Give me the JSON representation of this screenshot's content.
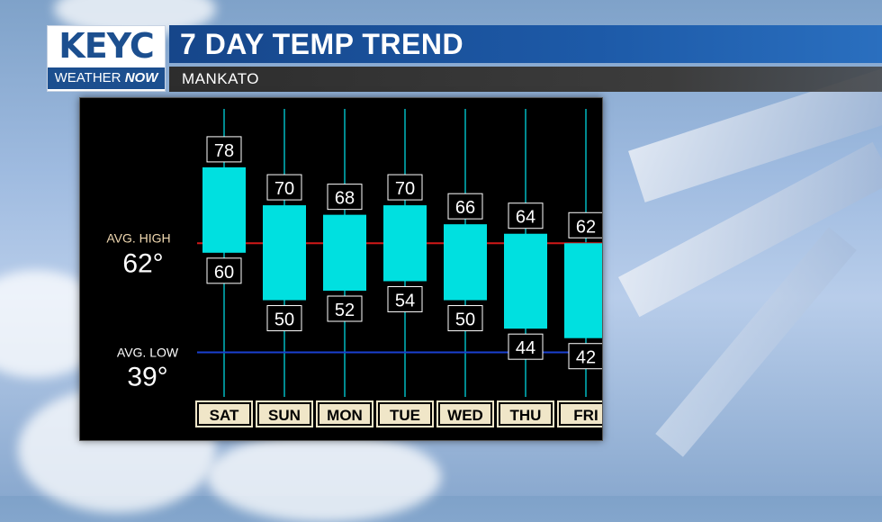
{
  "header": {
    "logo_main": "KEYC",
    "logo_sub_a": "WEATHER",
    "logo_sub_b": "NOW",
    "title": "7 DAY TEMP TREND",
    "location": "MANKATO"
  },
  "colors": {
    "bar": "#00e0e0",
    "avg_high_line": "#d01818",
    "avg_low_line": "#1a3fd0",
    "gridline": "#00b8c0",
    "day_label_bg": "#f0e6c8"
  },
  "chart_data": {
    "type": "bar",
    "title": "7 DAY TEMP TREND",
    "categories": [
      "SAT",
      "SUN",
      "MON",
      "TUE",
      "WED",
      "THU",
      "FRI"
    ],
    "series": [
      {
        "name": "High",
        "values": [
          78,
          70,
          68,
          70,
          66,
          64,
          62
        ]
      },
      {
        "name": "Low",
        "values": [
          60,
          50,
          52,
          54,
          50,
          44,
          42
        ]
      }
    ],
    "avg_high": {
      "label": "AVG. HIGH",
      "value": "62°",
      "y": 62
    },
    "avg_low": {
      "label": "AVG. LOW",
      "value": "39°",
      "y": 39
    },
    "ylim": [
      30,
      85
    ]
  }
}
